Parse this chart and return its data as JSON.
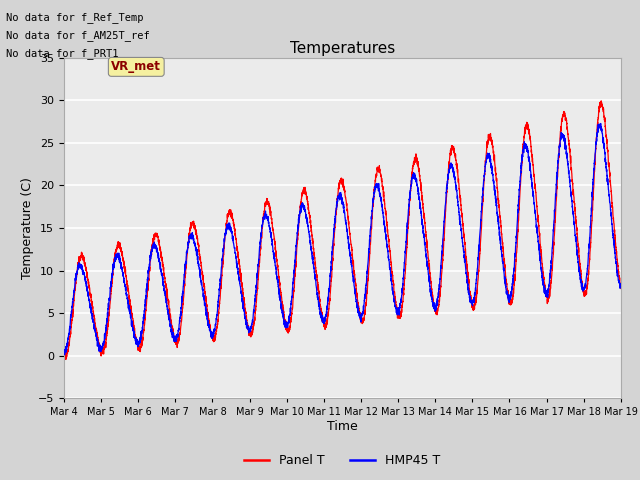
{
  "title": "Temperatures",
  "xlabel": "Time",
  "ylabel": "Temperature (C)",
  "ylim": [
    -5,
    35
  ],
  "annotations": [
    "No data for f_Ref_Temp",
    "No data for f_AM25T_ref",
    "No data for f_PRT1"
  ],
  "tooltip_text": "VR_met",
  "x_tick_labels": [
    "Mar 4",
    "Mar 5",
    "Mar 6",
    "Mar 7",
    "Mar 8",
    "Mar 9",
    "Mar 10",
    "Mar 11",
    "Mar 12",
    "Mar 13",
    "Mar 14",
    "Mar 15",
    "Mar 16",
    "Mar 17",
    "Mar 18",
    "Mar 19"
  ],
  "legend_labels": [
    "Panel T",
    "HMP45 T"
  ],
  "line_colors": [
    "red",
    "blue"
  ],
  "fig_facecolor": "#d4d4d4",
  "plot_facecolor": "#ebebeb",
  "grid_color": "white",
  "n_days": 15,
  "samples_per_day": 288,
  "figsize": [
    6.4,
    4.8
  ],
  "dpi": 100
}
